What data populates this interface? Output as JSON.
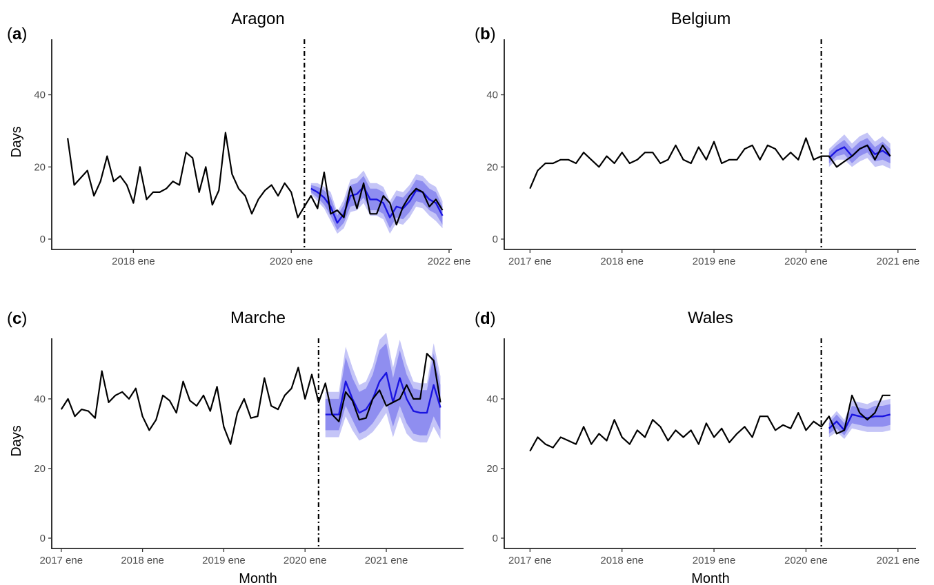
{
  "chart_data": [
    {
      "type": "line",
      "panel_tag": "a",
      "title": "Aragon",
      "xlabel": "",
      "ylabel": "Days",
      "ylim": [
        0,
        55
      ],
      "yticks": [
        0,
        20,
        40
      ],
      "xlim": [
        "2017-01",
        "2022-01"
      ],
      "xticks": [
        {
          "value": "2018-01",
          "label": "2018 ene"
        },
        {
          "value": "2020-01",
          "label": "2020 ene"
        },
        {
          "value": "2022-01",
          "label": "2022 ene"
        }
      ],
      "intervention": "2020-03",
      "observed": {
        "x": [
          "2017-03",
          "2017-04",
          "2017-05",
          "2017-06",
          "2017-07",
          "2017-08",
          "2017-09",
          "2017-10",
          "2017-11",
          "2017-12",
          "2018-01",
          "2018-02",
          "2018-03",
          "2018-04",
          "2018-05",
          "2018-06",
          "2018-07",
          "2018-08",
          "2018-09",
          "2018-10",
          "2018-11",
          "2018-12",
          "2019-01",
          "2019-02",
          "2019-03",
          "2019-04",
          "2019-05",
          "2019-06",
          "2019-07",
          "2019-08",
          "2019-09",
          "2019-10",
          "2019-11",
          "2019-12",
          "2020-01",
          "2020-02",
          "2020-04",
          "2020-05",
          "2020-06",
          "2020-07",
          "2020-08",
          "2020-09",
          "2020-10",
          "2020-11",
          "2020-12",
          "2021-01",
          "2021-02",
          "2021-03",
          "2021-04",
          "2021-05",
          "2021-06",
          "2021-07",
          "2021-08",
          "2021-09",
          "2021-10",
          "2021-11",
          "2021-12"
        ],
        "y": [
          28,
          15,
          17,
          19,
          12,
          16,
          23,
          16,
          17.5,
          15,
          10,
          20,
          11,
          13,
          13,
          14,
          16,
          15,
          24,
          22.5,
          13,
          20,
          9.5,
          13.5,
          29.5,
          18,
          14,
          12,
          7,
          11,
          13.5,
          15,
          12,
          15.5,
          13,
          6,
          12,
          8.5,
          18.5,
          7,
          8,
          6,
          14.5,
          8.5,
          15.5,
          7,
          7,
          12,
          10,
          4,
          9,
          12,
          14,
          13,
          9,
          11,
          8
        ]
      },
      "forecast": {
        "x": [
          "2020-04",
          "2020-05",
          "2020-06",
          "2020-07",
          "2020-08",
          "2020-09",
          "2020-10",
          "2020-11",
          "2020-12",
          "2021-01",
          "2021-02",
          "2021-03",
          "2021-04",
          "2021-05",
          "2021-06",
          "2021-07",
          "2021-08",
          "2021-09",
          "2021-10",
          "2021-11",
          "2021-12"
        ],
        "mean": [
          14,
          13,
          11.5,
          9,
          4.5,
          7,
          12,
          12.5,
          14.5,
          11,
          11,
          10,
          6,
          9,
          8.5,
          10.5,
          13.5,
          13,
          11,
          10,
          6.5
        ],
        "inner_lo": [
          13,
          11.5,
          9.5,
          6.5,
          2.5,
          4.5,
          9,
          9.5,
          11.5,
          8,
          8,
          7,
          3,
          6,
          5.5,
          7.5,
          10.5,
          10,
          8,
          7,
          4
        ],
        "inner_hi": [
          15,
          14.5,
          13.5,
          11.5,
          6.5,
          9.5,
          15,
          15.5,
          17.5,
          14,
          14,
          13,
          9,
          12,
          11.5,
          13.5,
          16.5,
          16,
          14,
          13,
          9
        ],
        "outer_lo": [
          12.5,
          10.5,
          8.5,
          5,
          1.5,
          3,
          7.5,
          8,
          10,
          6.5,
          6.5,
          5.5,
          1.5,
          4.5,
          4,
          6,
          9,
          8.5,
          6.5,
          5,
          3
        ],
        "outer_hi": [
          15.5,
          15.5,
          14.5,
          13,
          7.5,
          11,
          16.5,
          17,
          19,
          15.5,
          15.5,
          14.5,
          10.5,
          13.5,
          13,
          15,
          18,
          17.5,
          15.5,
          14.5,
          10.5
        ]
      }
    },
    {
      "type": "line",
      "panel_tag": "b",
      "title": "Belgium",
      "xlabel": "",
      "ylabel": "",
      "ylim": [
        0,
        55
      ],
      "yticks": [
        0,
        20,
        40
      ],
      "xlim": [
        "2016-10",
        "2021-03"
      ],
      "xticks": [
        {
          "value": "2017-01",
          "label": "2017 ene"
        },
        {
          "value": "2018-01",
          "label": "2018 ene"
        },
        {
          "value": "2019-01",
          "label": "2019 ene"
        },
        {
          "value": "2020-01",
          "label": "2020 ene"
        },
        {
          "value": "2021-01",
          "label": "2021 ene"
        }
      ],
      "intervention": "2020-03",
      "observed": {
        "x": [
          "2017-01",
          "2017-02",
          "2017-03",
          "2017-04",
          "2017-05",
          "2017-06",
          "2017-07",
          "2017-08",
          "2017-09",
          "2017-10",
          "2017-11",
          "2017-12",
          "2018-01",
          "2018-02",
          "2018-03",
          "2018-04",
          "2018-05",
          "2018-06",
          "2018-07",
          "2018-08",
          "2018-09",
          "2018-10",
          "2018-11",
          "2018-12",
          "2019-01",
          "2019-02",
          "2019-03",
          "2019-04",
          "2019-05",
          "2019-06",
          "2019-07",
          "2019-08",
          "2019-09",
          "2019-10",
          "2019-11",
          "2019-12",
          "2020-01",
          "2020-02",
          "2020-03",
          "2020-04",
          "2020-05",
          "2020-06",
          "2020-07",
          "2020-08",
          "2020-09",
          "2020-10",
          "2020-11",
          "2020-12"
        ],
        "y": [
          14,
          19,
          21,
          21,
          22,
          22,
          21,
          24,
          22,
          20,
          23,
          21,
          24,
          21,
          22,
          24,
          24,
          21,
          22,
          26,
          22,
          21,
          25.5,
          22,
          27,
          21,
          22,
          22,
          25,
          26,
          22,
          26,
          25,
          22,
          24,
          22,
          28,
          22,
          23,
          23,
          20,
          21.5,
          23,
          25,
          26,
          22,
          26,
          23
        ]
      },
      "forecast": {
        "x": [
          "2020-04",
          "2020-05",
          "2020-06",
          "2020-07",
          "2020-08",
          "2020-09",
          "2020-10",
          "2020-11",
          "2020-12"
        ],
        "mean": [
          22.5,
          24.5,
          25.5,
          23,
          25,
          26,
          23.5,
          24.5,
          23
        ],
        "inner_lo": [
          21,
          23,
          23.5,
          21,
          23,
          24,
          21.5,
          22,
          21
        ],
        "inner_hi": [
          24,
          26,
          27.5,
          25,
          27,
          28,
          25.5,
          27,
          25
        ],
        "outer_lo": [
          20,
          22,
          22,
          20,
          21.5,
          22.5,
          20,
          20.5,
          19.5
        ],
        "outer_hi": [
          25,
          27,
          29,
          26.5,
          28.5,
          29.5,
          27,
          28.5,
          26.5
        ]
      }
    },
    {
      "type": "line",
      "panel_tag": "c",
      "title": "Marche",
      "xlabel": "Month",
      "ylabel": "Days",
      "ylim": [
        0,
        57
      ],
      "yticks": [
        0,
        20,
        40
      ],
      "xlim": [
        "2016-12",
        "2021-12"
      ],
      "xticks": [
        {
          "value": "2017-01",
          "label": "2017 ene"
        },
        {
          "value": "2018-01",
          "label": "2018 ene"
        },
        {
          "value": "2019-01",
          "label": "2019 ene"
        },
        {
          "value": "2020-01",
          "label": "2020 ene"
        },
        {
          "value": "2021-01",
          "label": "2021 ene"
        }
      ],
      "intervention": "2020-03",
      "observed": {
        "x": [
          "2017-01",
          "2017-02",
          "2017-03",
          "2017-04",
          "2017-05",
          "2017-06",
          "2017-07",
          "2017-08",
          "2017-09",
          "2017-10",
          "2017-11",
          "2017-12",
          "2018-01",
          "2018-02",
          "2018-03",
          "2018-04",
          "2018-05",
          "2018-06",
          "2018-07",
          "2018-08",
          "2018-09",
          "2018-10",
          "2018-11",
          "2018-12",
          "2019-01",
          "2019-02",
          "2019-03",
          "2019-04",
          "2019-05",
          "2019-06",
          "2019-07",
          "2019-08",
          "2019-09",
          "2019-10",
          "2019-11",
          "2019-12",
          "2020-01",
          "2020-02",
          "2020-03",
          "2020-04",
          "2020-05",
          "2020-06",
          "2020-07",
          "2020-08",
          "2020-09",
          "2020-10",
          "2020-11",
          "2020-12",
          "2021-01",
          "2021-02",
          "2021-03",
          "2021-04",
          "2021-05",
          "2021-06",
          "2021-07",
          "2021-08",
          "2021-09"
        ],
        "y": [
          37,
          40,
          35,
          37,
          36.5,
          34.5,
          48,
          39,
          41,
          42,
          40,
          43,
          35,
          31,
          34,
          41,
          39.5,
          36,
          45,
          39.5,
          38,
          41,
          36.5,
          43.5,
          32,
          27,
          36,
          40,
          34.5,
          35,
          46,
          38,
          37,
          41,
          43,
          49,
          40,
          47,
          39,
          44.5,
          35.5,
          33.5,
          42,
          39.5,
          34,
          34.5,
          40,
          42.5,
          38,
          39,
          40,
          44,
          40,
          40,
          53,
          51,
          39
        ]
      },
      "forecast": {
        "x": [
          "2020-04",
          "2020-05",
          "2020-06",
          "2020-07",
          "2020-08",
          "2020-09",
          "2020-10",
          "2020-11",
          "2020-12",
          "2021-01",
          "2021-02",
          "2021-03",
          "2021-04",
          "2021-05",
          "2021-06",
          "2021-07",
          "2021-08",
          "2021-09"
        ],
        "mean": [
          35.5,
          35.5,
          35.5,
          45,
          40,
          36,
          37,
          40,
          45,
          47.5,
          39,
          46,
          40,
          36.5,
          36,
          36,
          44,
          37.5
        ],
        "inner_lo": [
          31,
          31,
          31,
          38,
          34,
          30,
          31,
          33,
          36,
          39,
          32,
          38,
          33,
          30,
          29.5,
          29.5,
          35,
          31
        ],
        "inner_hi": [
          40,
          40,
          40,
          52,
          46,
          42,
          43,
          47,
          54,
          56,
          46,
          54,
          47,
          43,
          42.5,
          42.5,
          53,
          44
        ],
        "outer_lo": [
          29,
          29,
          29,
          35,
          31,
          28,
          29,
          30.5,
          33,
          36,
          29,
          35,
          30,
          28,
          27.5,
          27.5,
          32,
          28.5
        ],
        "outer_hi": [
          42,
          42,
          42,
          55,
          49,
          44,
          45,
          49.5,
          57,
          59,
          49,
          57,
          50,
          45,
          44.5,
          44.5,
          56,
          46.5
        ]
      }
    },
    {
      "type": "line",
      "panel_tag": "d",
      "title": "Wales",
      "xlabel": "Month",
      "ylabel": "",
      "ylim": [
        0,
        57
      ],
      "yticks": [
        0,
        20,
        40
      ],
      "xlim": [
        "2016-10",
        "2021-03"
      ],
      "xticks": [
        {
          "value": "2017-01",
          "label": "2017 ene"
        },
        {
          "value": "2018-01",
          "label": "2018 ene"
        },
        {
          "value": "2019-01",
          "label": "2019 ene"
        },
        {
          "value": "2020-01",
          "label": "2020 ene"
        },
        {
          "value": "2021-01",
          "label": "2021 ene"
        }
      ],
      "intervention": "2020-03",
      "observed": {
        "x": [
          "2017-01",
          "2017-02",
          "2017-03",
          "2017-04",
          "2017-05",
          "2017-06",
          "2017-07",
          "2017-08",
          "2017-09",
          "2017-10",
          "2017-11",
          "2017-12",
          "2018-01",
          "2018-02",
          "2018-03",
          "2018-04",
          "2018-05",
          "2018-06",
          "2018-07",
          "2018-08",
          "2018-09",
          "2018-10",
          "2018-11",
          "2018-12",
          "2019-01",
          "2019-02",
          "2019-03",
          "2019-04",
          "2019-05",
          "2019-06",
          "2019-07",
          "2019-08",
          "2019-09",
          "2019-10",
          "2019-11",
          "2019-12",
          "2020-01",
          "2020-02",
          "2020-03",
          "2020-04",
          "2020-05",
          "2020-06",
          "2020-07",
          "2020-08",
          "2020-09",
          "2020-10",
          "2020-11",
          "2020-12"
        ],
        "y": [
          25,
          29,
          27,
          26,
          29,
          28,
          27,
          32,
          27,
          30,
          28,
          34,
          29,
          27,
          31,
          29,
          34,
          32,
          28,
          31,
          29,
          31,
          27,
          33,
          29,
          31.5,
          27.5,
          30,
          32,
          29,
          35,
          35,
          31,
          32.5,
          31.5,
          36,
          31,
          33.5,
          32,
          35,
          30,
          31,
          41,
          36,
          34,
          36,
          41,
          41
        ]
      },
      "forecast": {
        "x": [
          "2020-04",
          "2020-05",
          "2020-06",
          "2020-07",
          "2020-08",
          "2020-09",
          "2020-10",
          "2020-11",
          "2020-12"
        ],
        "mean": [
          31.5,
          33.5,
          31,
          35.5,
          35,
          34.5,
          35,
          35,
          35.5
        ],
        "inner_lo": [
          30,
          31.5,
          29.5,
          33,
          32.5,
          32,
          32,
          32,
          32.5
        ],
        "inner_hi": [
          33,
          35.5,
          33,
          38,
          37.5,
          37,
          38,
          38,
          38.5
        ],
        "outer_lo": [
          29,
          30.5,
          28.5,
          31.5,
          31,
          30.5,
          30.5,
          30.5,
          31
        ],
        "outer_hi": [
          34,
          36.5,
          34,
          39.5,
          39,
          38.5,
          39.5,
          39.5,
          40
        ]
      }
    }
  ]
}
